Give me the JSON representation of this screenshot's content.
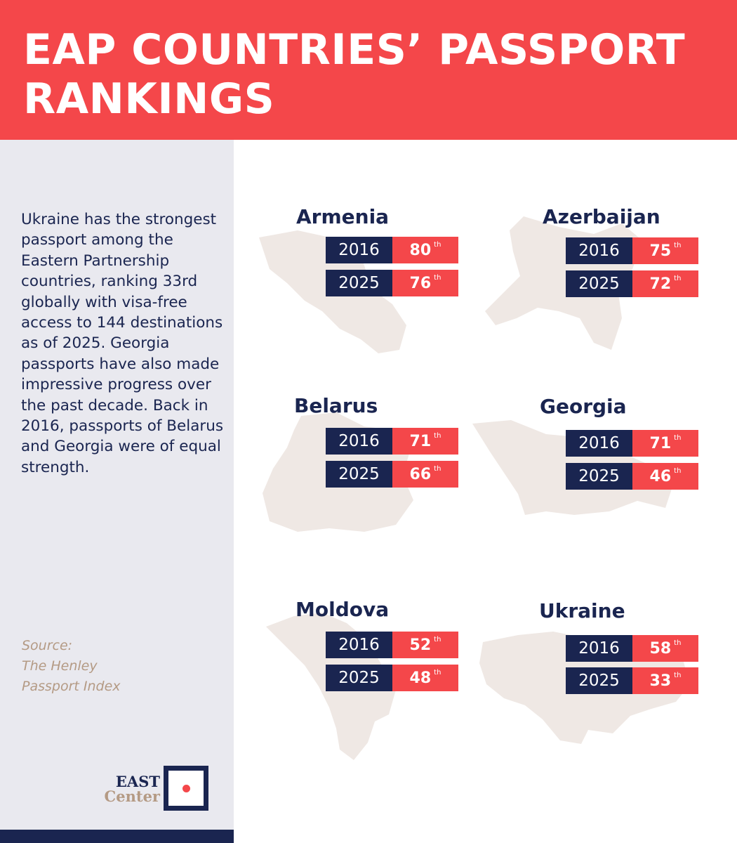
{
  "header": {
    "title": "EAP COUNTRIES’ PASSPORT RANKINGS"
  },
  "sidebar": {
    "summary": "Ukraine has the strongest passport among the Eastern Partnership countries, ranking 33rd globally with visa-free access to 144 destinations as of 2025. Georgia passports have also made impressive progress over the past decade. Back in 2016, passports of Belarus and Georgia were of equal strength.",
    "source_lines": [
      "Source:",
      "The Henley",
      "Passport Index"
    ]
  },
  "logo": {
    "line1": "EAST",
    "line2": "Center"
  },
  "colors": {
    "accent": "#f4474a",
    "navy": "#1a2550",
    "sidebar_bg": "#e9e9ef",
    "source_text": "#b49a84",
    "map_fill": "#efe8e4"
  },
  "chart_data": {
    "type": "table",
    "title": "EAP COUNTRIES’ PASSPORT RANKINGS",
    "columns": [
      "2016",
      "2025"
    ],
    "rank_suffix": "th",
    "rows": [
      {
        "country": "Armenia",
        "ranks": [
          {
            "year": "2016",
            "rank": 80
          },
          {
            "year": "2025",
            "rank": 76
          }
        ]
      },
      {
        "country": "Azerbaijan",
        "ranks": [
          {
            "year": "2016",
            "rank": 75
          },
          {
            "year": "2025",
            "rank": 72
          }
        ]
      },
      {
        "country": "Belarus",
        "ranks": [
          {
            "year": "2016",
            "rank": 71
          },
          {
            "year": "2025",
            "rank": 66
          }
        ]
      },
      {
        "country": "Georgia",
        "ranks": [
          {
            "year": "2016",
            "rank": 71
          },
          {
            "year": "2025",
            "rank": 46
          }
        ]
      },
      {
        "country": "Moldova",
        "ranks": [
          {
            "year": "2016",
            "rank": 52
          },
          {
            "year": "2025",
            "rank": 48
          }
        ]
      },
      {
        "country": "Ukraine",
        "ranks": [
          {
            "year": "2016",
            "rank": 58
          },
          {
            "year": "2025",
            "rank": 33
          }
        ]
      }
    ]
  }
}
